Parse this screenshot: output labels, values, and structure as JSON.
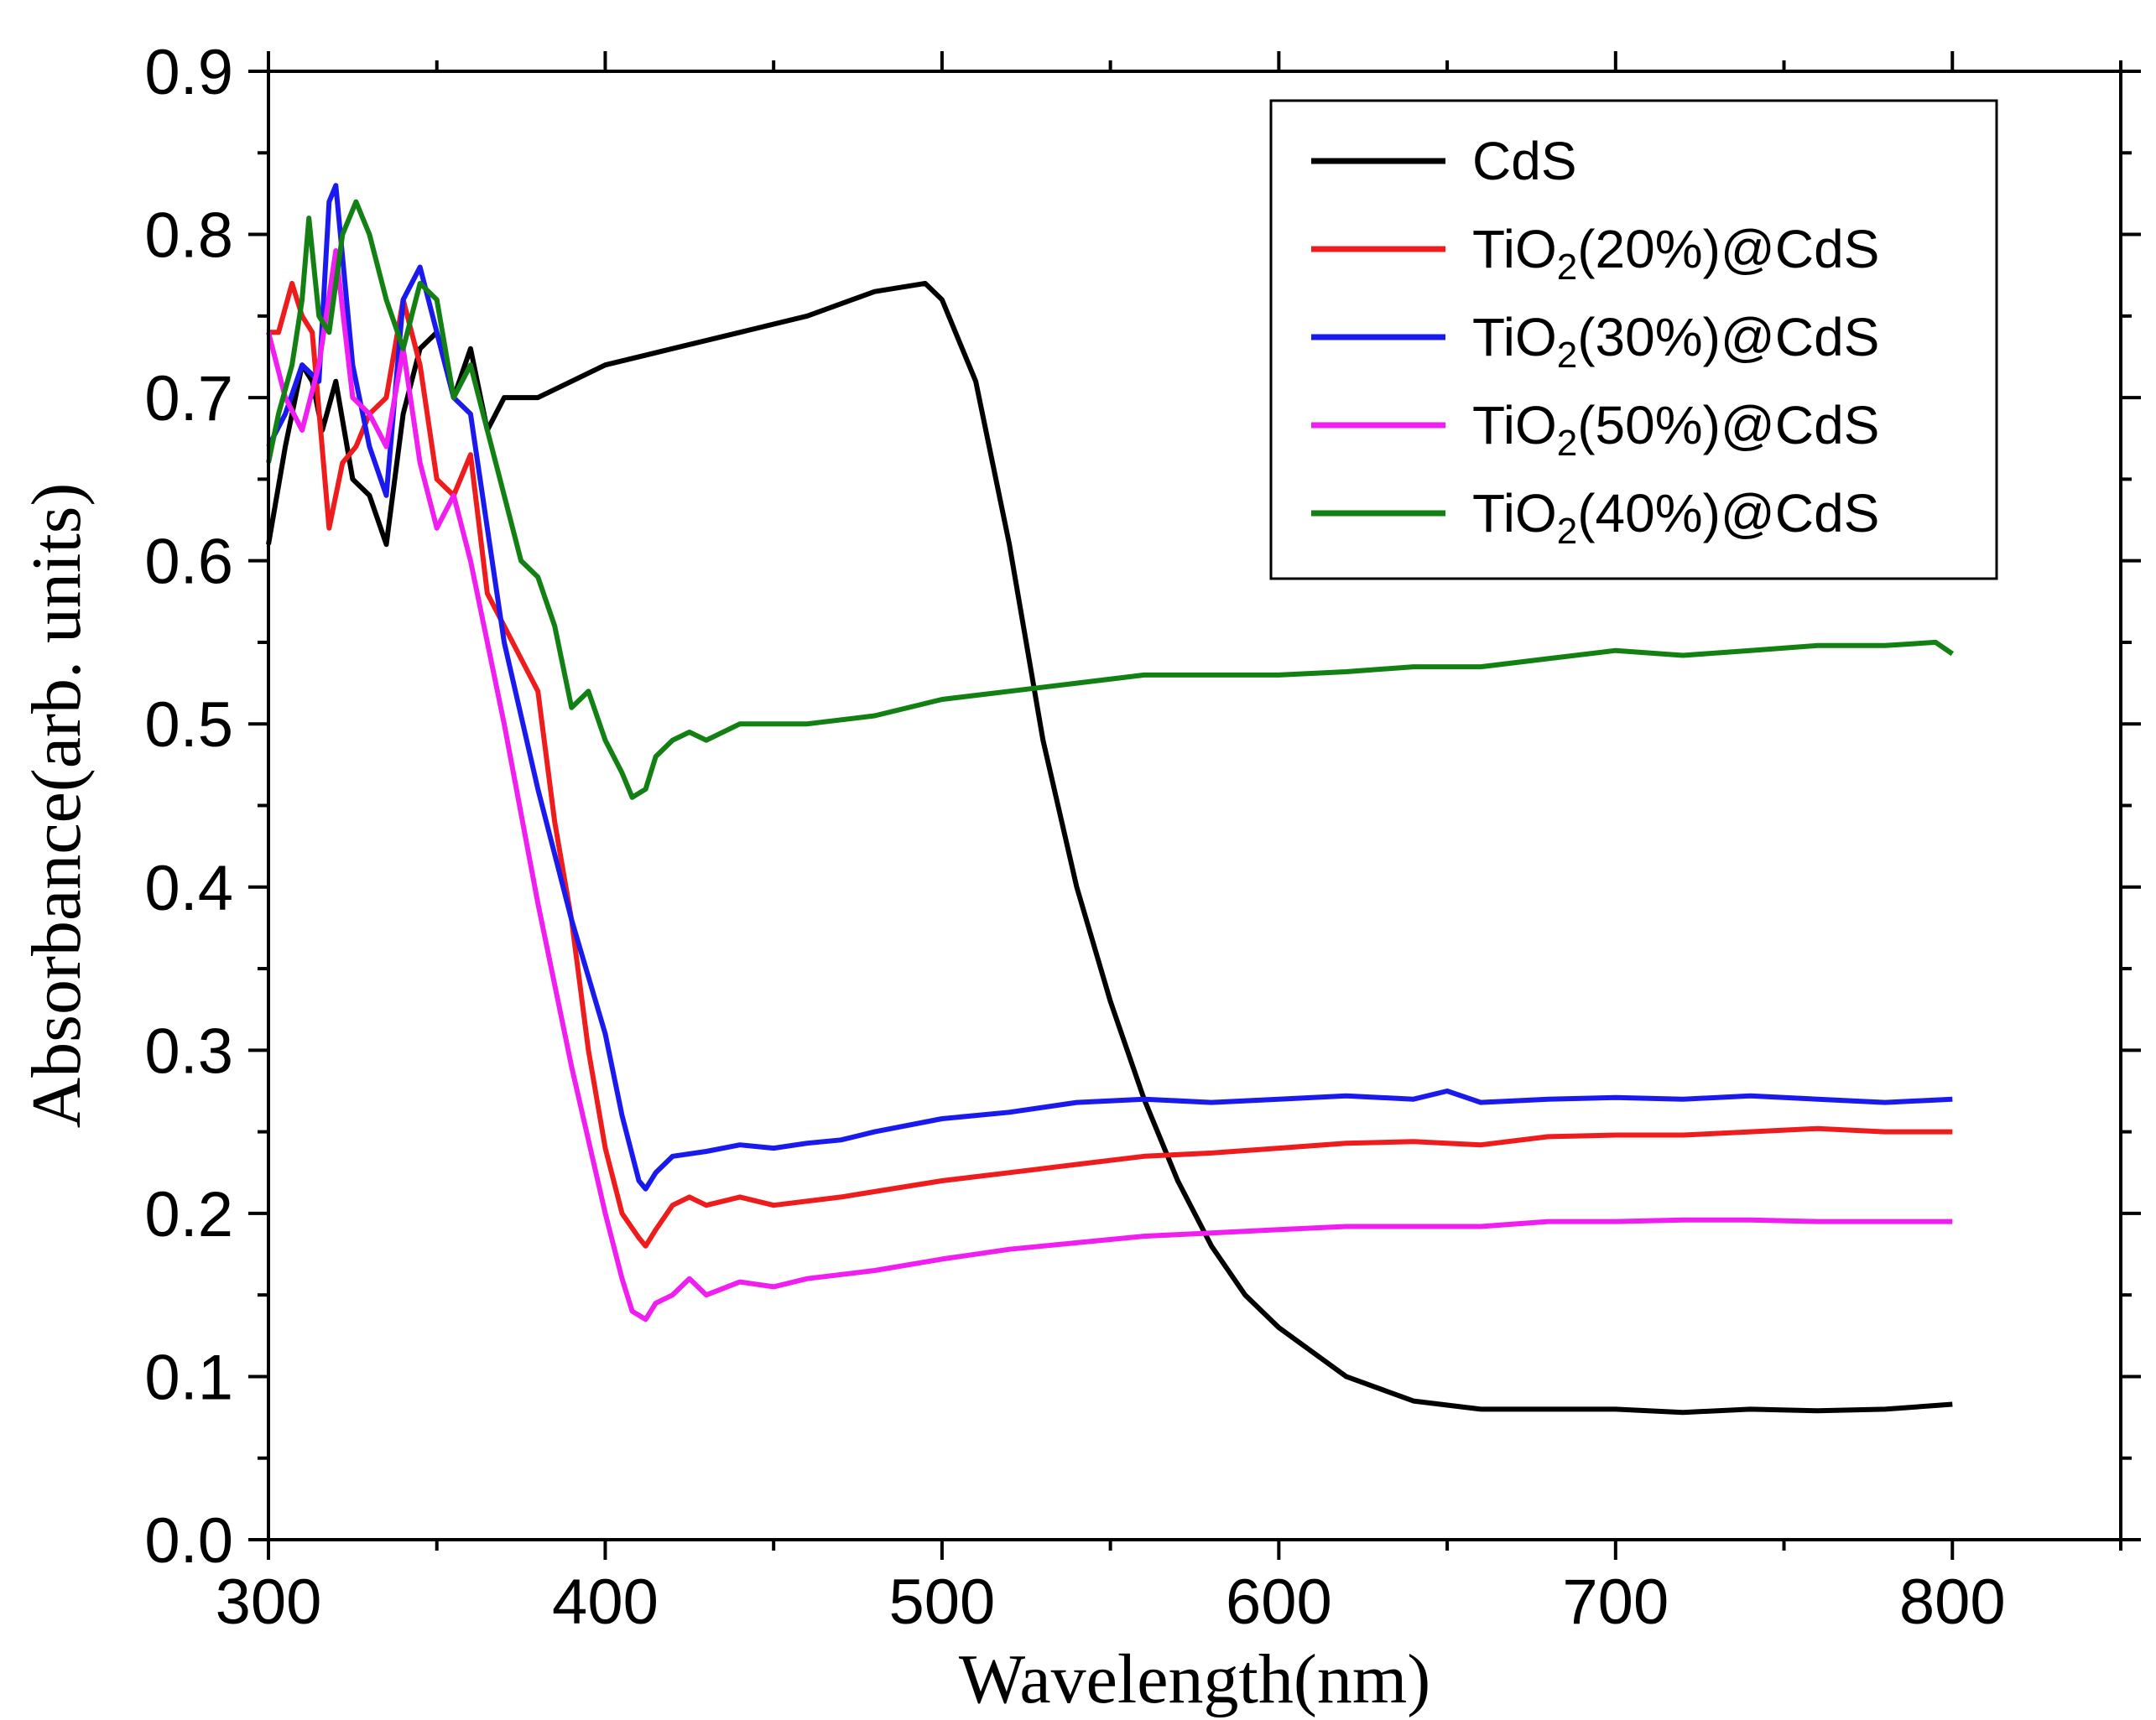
{
  "chart_data": {
    "type": "line",
    "xlabel": "Wavelength(nm)",
    "ylabel": "Absorbance(arb. units)",
    "xlim": [
      300,
      850
    ],
    "ylim": [
      0.0,
      0.9
    ],
    "x_ticks": [
      "300",
      "400",
      "500",
      "600",
      "700",
      "800"
    ],
    "y_ticks": [
      "0.0",
      "0.1",
      "0.2",
      "0.3",
      "0.4",
      "0.5",
      "0.6",
      "0.7",
      "0.8",
      "0.9"
    ],
    "legend_position": "top-right",
    "grid": false,
    "series": [
      {
        "name": "CdS",
        "base": "CdS",
        "sub": "",
        "rest": "",
        "color": "#000000",
        "x": [
          300,
          305,
          310,
          313,
          316,
          320,
          325,
          330,
          335,
          340,
          345,
          350,
          355,
          360,
          365,
          370,
          380,
          390,
          400,
          420,
          440,
          460,
          480,
          495,
          500,
          510,
          520,
          530,
          540,
          550,
          560,
          570,
          580,
          590,
          600,
          620,
          640,
          660,
          680,
          700,
          720,
          740,
          760,
          780,
          800
        ],
        "y": [
          0.61,
          0.67,
          0.72,
          0.71,
          0.68,
          0.71,
          0.65,
          0.64,
          0.61,
          0.69,
          0.73,
          0.74,
          0.7,
          0.73,
          0.68,
          0.7,
          0.7,
          0.71,
          0.72,
          0.73,
          0.74,
          0.75,
          0.765,
          0.77,
          0.76,
          0.71,
          0.61,
          0.49,
          0.4,
          0.33,
          0.27,
          0.22,
          0.18,
          0.15,
          0.13,
          0.1,
          0.085,
          0.08,
          0.08,
          0.08,
          0.078,
          0.08,
          0.079,
          0.08,
          0.083
        ]
      },
      {
        "name": "TiO₂(20%)@CdS",
        "base": "TiO",
        "sub": "2",
        "rest": "(20%)@CdS",
        "color": "#ee1c1c",
        "x": [
          300,
          303,
          307,
          310,
          313,
          318,
          322,
          326,
          330,
          335,
          340,
          345,
          350,
          355,
          360,
          365,
          370,
          380,
          385,
          390,
          395,
          400,
          405,
          410,
          412,
          415,
          420,
          425,
          430,
          440,
          450,
          470,
          500,
          520,
          540,
          560,
          580,
          600,
          620,
          640,
          660,
          680,
          700,
          720,
          740,
          760,
          780,
          800
        ],
        "y": [
          0.74,
          0.74,
          0.77,
          0.75,
          0.74,
          0.62,
          0.66,
          0.67,
          0.69,
          0.7,
          0.76,
          0.72,
          0.65,
          0.64,
          0.665,
          0.58,
          0.56,
          0.52,
          0.44,
          0.38,
          0.3,
          0.24,
          0.2,
          0.185,
          0.18,
          0.19,
          0.205,
          0.21,
          0.205,
          0.21,
          0.205,
          0.21,
          0.22,
          0.225,
          0.23,
          0.235,
          0.237,
          0.24,
          0.243,
          0.244,
          0.242,
          0.247,
          0.248,
          0.248,
          0.25,
          0.252,
          0.25,
          0.25
        ]
      },
      {
        "name": "TiO₂(30%)@CdS",
        "base": "TiO",
        "sub": "2",
        "rest": "(30%)@CdS",
        "color": "#1a1aee",
        "x": [
          300,
          305,
          310,
          315,
          318,
          320,
          325,
          330,
          335,
          340,
          345,
          350,
          355,
          360,
          365,
          370,
          380,
          390,
          400,
          405,
          410,
          412,
          415,
          420,
          430,
          440,
          450,
          460,
          470,
          480,
          500,
          520,
          540,
          560,
          580,
          600,
          620,
          640,
          650,
          660,
          680,
          700,
          720,
          740,
          760,
          780,
          800
        ],
        "y": [
          0.67,
          0.69,
          0.72,
          0.71,
          0.82,
          0.83,
          0.72,
          0.67,
          0.64,
          0.76,
          0.78,
          0.74,
          0.7,
          0.69,
          0.62,
          0.55,
          0.46,
          0.38,
          0.31,
          0.26,
          0.22,
          0.215,
          0.225,
          0.235,
          0.238,
          0.242,
          0.24,
          0.243,
          0.245,
          0.25,
          0.258,
          0.262,
          0.268,
          0.27,
          0.268,
          0.27,
          0.272,
          0.27,
          0.275,
          0.268,
          0.27,
          0.271,
          0.27,
          0.272,
          0.27,
          0.268,
          0.27
        ]
      },
      {
        "name": "TiO₂(50%)@CdS",
        "base": "TiO",
        "sub": "2",
        "rest": "(50%)@CdS",
        "color": "#f01ef0",
        "x": [
          300,
          305,
          310,
          315,
          320,
          325,
          330,
          335,
          340,
          345,
          350,
          355,
          360,
          365,
          370,
          380,
          390,
          400,
          405,
          408,
          412,
          415,
          420,
          425,
          430,
          440,
          450,
          460,
          480,
          500,
          520,
          540,
          560,
          580,
          600,
          620,
          640,
          660,
          680,
          700,
          720,
          740,
          760,
          780,
          800
        ],
        "y": [
          0.74,
          0.7,
          0.68,
          0.72,
          0.79,
          0.7,
          0.69,
          0.67,
          0.73,
          0.66,
          0.62,
          0.64,
          0.6,
          0.55,
          0.5,
          0.39,
          0.29,
          0.2,
          0.16,
          0.14,
          0.135,
          0.145,
          0.15,
          0.16,
          0.15,
          0.158,
          0.155,
          0.16,
          0.165,
          0.172,
          0.178,
          0.182,
          0.186,
          0.188,
          0.19,
          0.192,
          0.192,
          0.192,
          0.195,
          0.195,
          0.196,
          0.196,
          0.195,
          0.195,
          0.195
        ]
      },
      {
        "name": "TiO₂(40%)@CdS",
        "base": "TiO",
        "sub": "2",
        "rest": "(40%)@CdS",
        "color": "#128012",
        "x": [
          300,
          303,
          307,
          310,
          312,
          315,
          318,
          322,
          326,
          330,
          335,
          340,
          345,
          350,
          355,
          360,
          365,
          370,
          375,
          380,
          385,
          390,
          395,
          400,
          405,
          408,
          412,
          415,
          420,
          425,
          430,
          440,
          450,
          460,
          480,
          500,
          520,
          540,
          560,
          580,
          600,
          620,
          640,
          660,
          680,
          700,
          720,
          740,
          760,
          780,
          795,
          800
        ],
        "y": [
          0.66,
          0.69,
          0.72,
          0.76,
          0.81,
          0.75,
          0.74,
          0.8,
          0.82,
          0.8,
          0.76,
          0.73,
          0.77,
          0.76,
          0.7,
          0.72,
          0.68,
          0.64,
          0.6,
          0.59,
          0.56,
          0.51,
          0.52,
          0.49,
          0.47,
          0.455,
          0.46,
          0.48,
          0.49,
          0.495,
          0.49,
          0.5,
          0.5,
          0.5,
          0.505,
          0.515,
          0.52,
          0.525,
          0.53,
          0.53,
          0.53,
          0.532,
          0.535,
          0.535,
          0.54,
          0.545,
          0.542,
          0.545,
          0.548,
          0.548,
          0.55,
          0.543
        ]
      }
    ]
  }
}
